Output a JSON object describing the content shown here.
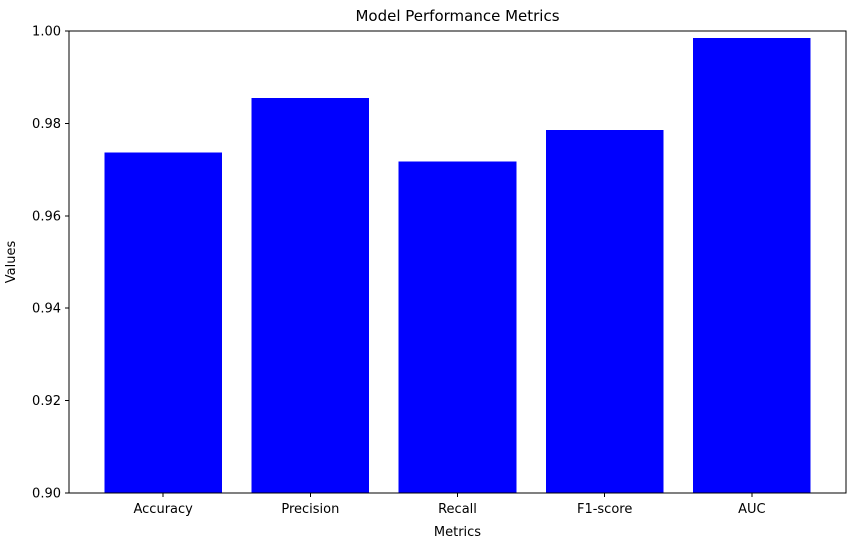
{
  "chart_data": {
    "type": "bar",
    "title": "Model Performance Metrics",
    "xlabel": "Metrics",
    "ylabel": "Values",
    "categories": [
      "Accuracy",
      "Precision",
      "Recall",
      "F1-score",
      "AUC"
    ],
    "values": [
      0.9737,
      0.9855,
      0.9718,
      0.9786,
      0.9985
    ],
    "ylim": [
      0.9,
      1.0
    ],
    "yticks": [
      0.9,
      0.92,
      0.94,
      0.96,
      0.98,
      1.0
    ],
    "ytick_labels": [
      "0.90",
      "0.92",
      "0.94",
      "0.96",
      "0.98",
      "1.00"
    ],
    "bar_color": "#0000ff",
    "axis_color": "#000000",
    "background": "#ffffff",
    "bar_width_fraction": 0.8,
    "grid": false,
    "legend": null
  }
}
